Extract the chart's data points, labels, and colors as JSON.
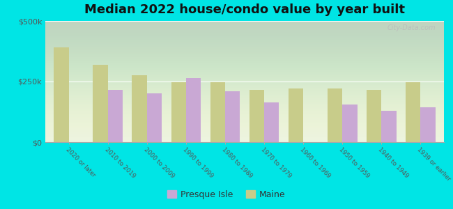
{
  "title": "Median 2022 house/condo value by year built",
  "categories": [
    "2020 or later",
    "2010 to 2019",
    "2000 to 2009",
    "1990 to 1999",
    "1980 to 1989",
    "1970 to 1979",
    "1960 to 1969",
    "1950 to 1959",
    "1940 to 1949",
    "1939 or earlier"
  ],
  "presque_isle": [
    0,
    215000,
    200000,
    265000,
    210000,
    165000,
    0,
    155000,
    130000,
    145000
  ],
  "maine": [
    390000,
    320000,
    275000,
    248000,
    248000,
    215000,
    220000,
    222000,
    215000,
    248000
  ],
  "presque_isle_color": "#c9a8d4",
  "maine_color": "#c8cc8a",
  "background_color": "#00e5e5",
  "plot_bg_color": "#eaf2e0",
  "ylim": [
    0,
    500000
  ],
  "yticks": [
    0,
    250000,
    500000
  ],
  "ytick_labels": [
    "$0",
    "$250k",
    "$500k"
  ],
  "title_fontsize": 13,
  "legend_labels": [
    "Presque Isle",
    "Maine"
  ],
  "bar_width": 0.38,
  "watermark": "City-Data.com"
}
